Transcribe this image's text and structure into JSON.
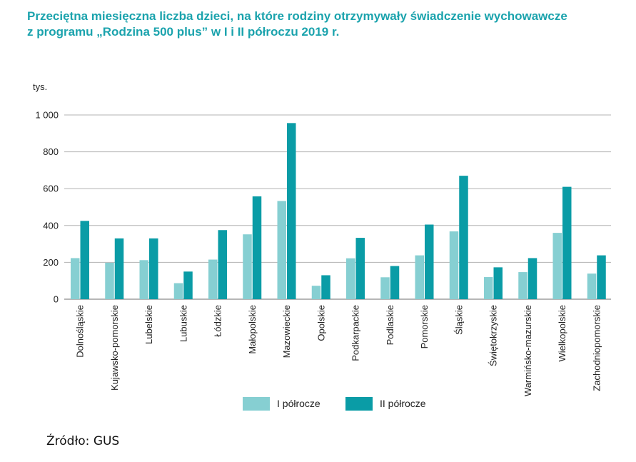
{
  "chart_data": {
    "type": "bar",
    "title_lines": [
      "Przeciętna miesięczna liczba dzieci, na które rodziny otrzymywały świadczenie wychowawcze",
      "z programu „Rodzina 500 plus” w I i II półroczu 2019 r."
    ],
    "ylabel": "tys.",
    "ylim": [
      0,
      1000
    ],
    "yticks": [
      0,
      200,
      400,
      600,
      800,
      1000
    ],
    "ytick_labels": [
      "0",
      "200",
      "400",
      "600",
      "800",
      "1 000"
    ],
    "grid": true,
    "legend_position": "bottom-center",
    "categories": [
      "Dolnośląskie",
      "Kujawsko-pomorskie",
      "Lubelskie",
      "Lubuskie",
      "Łódzkie",
      "Małopolskie",
      "Mazowieckie",
      "Opolskie",
      "Podkarpackie",
      "Podlaskie",
      "Pomorskie",
      "Śląskie",
      "Świętokrzyskie",
      "Warmińsko-mazurskie",
      "Wielkopolskie",
      "Zachodniopomorskie"
    ],
    "series": [
      {
        "name": "I półrocze",
        "color": "#86cfd2",
        "values": [
          223,
          198,
          212,
          87,
          215,
          352,
          533,
          73,
          222,
          119,
          238,
          368,
          120,
          147,
          360,
          139
        ]
      },
      {
        "name": "II półrocze",
        "color": "#0a9ca6",
        "values": [
          425,
          330,
          330,
          150,
          375,
          558,
          956,
          130,
          333,
          180,
          405,
          670,
          173,
          223,
          610,
          238
        ]
      }
    ]
  },
  "source": "Źródło: GUS"
}
